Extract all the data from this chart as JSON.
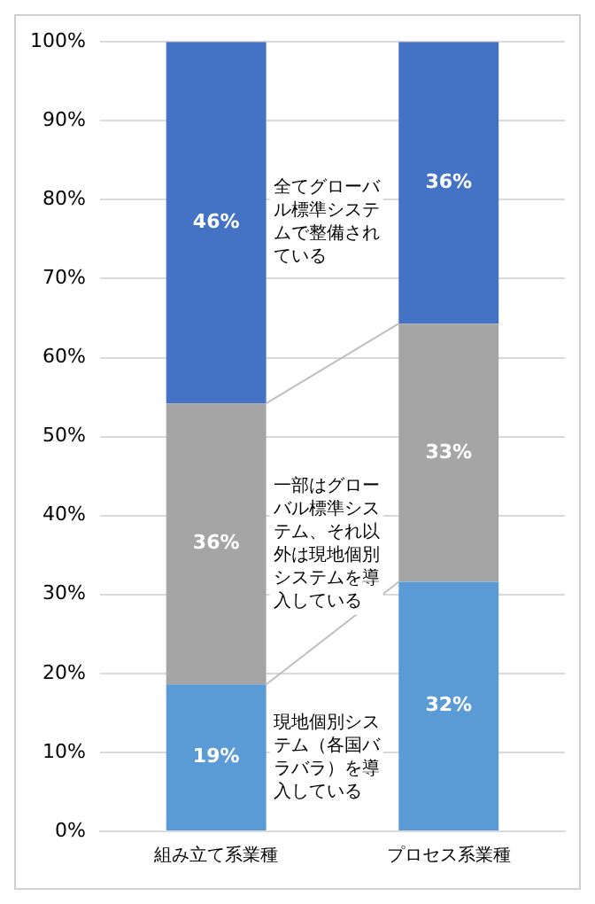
{
  "chart_data": {
    "type": "bar",
    "stacked": true,
    "categories": [
      "組み立て系業種",
      "プロセス系業種"
    ],
    "series": [
      {
        "name": "現地個別システム（各国バラバラ）を導入している",
        "color": "#5b9bd5",
        "values": [
          18.6,
          31.6
        ],
        "value_labels": [
          "19%",
          "32%"
        ]
      },
      {
        "name": "一部はグローバル標準システム、それ以外は現地個別システムを導入している",
        "color": "#a5a5a5",
        "values": [
          35.6,
          32.7
        ],
        "value_labels": [
          "36%",
          "33%"
        ]
      },
      {
        "name": "全てグローバル標準システムで整備されている",
        "color": "#4472c4",
        "values": [
          45.8,
          35.7
        ],
        "value_labels": [
          "46%",
          "36%"
        ]
      }
    ],
    "ylim": [
      0,
      100
    ],
    "yticks": [
      {
        "value": 0,
        "label": "0%"
      },
      {
        "value": 10,
        "label": "10%"
      },
      {
        "value": 20,
        "label": "20%"
      },
      {
        "value": 30,
        "label": "30%"
      },
      {
        "value": 40,
        "label": "40%"
      },
      {
        "value": 50,
        "label": "50%"
      },
      {
        "value": 60,
        "label": "60%"
      },
      {
        "value": 70,
        "label": "70%"
      },
      {
        "value": 80,
        "label": "80%"
      },
      {
        "value": 90,
        "label": "90%"
      },
      {
        "value": 100,
        "label": "100%"
      }
    ],
    "grid": "y",
    "legend": false
  }
}
